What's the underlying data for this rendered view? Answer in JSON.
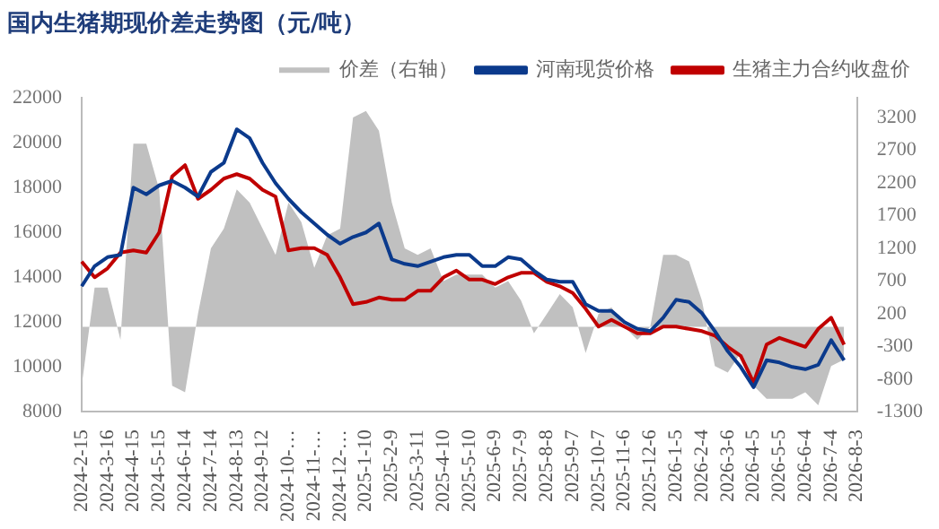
{
  "chart_data": {
    "type": "line",
    "title": "国内生猪期现价差走势图（元/吨）",
    "categories": [
      "2024-2-15",
      null,
      "2024-3-16",
      null,
      "2024-4-15",
      null,
      "2024-5-15",
      null,
      "2024-6-14",
      null,
      "2024-7-14",
      null,
      "2024-8-13",
      null,
      "2024-9-12",
      null,
      "2024-10-…",
      null,
      "2024-11-…",
      null,
      "2024-12-…",
      null,
      "2025-1-10",
      null,
      "2025-2-9",
      null,
      "2025-3-11",
      null,
      "2025-4-10",
      null,
      "2025-5-10",
      null,
      "2025-6-9",
      null,
      "2025-7-9",
      null,
      "2025-8-8",
      null,
      "2025-9-7",
      null,
      "2025-10-7",
      null,
      "2025-11-6",
      null,
      "2025-12-6",
      null,
      "2026-1-5",
      null,
      "2026-2-4",
      null,
      "2026-3-6",
      null,
      "2026-4-5",
      null,
      "2026-5-5",
      null,
      "2026-6-4",
      null,
      "2026-7-4",
      null,
      "2026-8-3"
    ],
    "series": [
      {
        "name": "价差（右轴）",
        "type": "area",
        "axis": "y2",
        "color": "#c0c0c0",
        "values": [
          -900,
          600,
          600,
          -200,
          2800,
          2800,
          2100,
          -900,
          -1000,
          200,
          1200,
          1500,
          2100,
          1900,
          1500,
          1100,
          1900,
          1600,
          900,
          1400,
          1500,
          3200,
          3300,
          3000,
          1900,
          1200,
          1100,
          1200,
          700,
          800,
          800,
          800,
          600,
          700,
          400,
          -100,
          200,
          500,
          300,
          -400,
          200,
          300,
          0,
          -200,
          0,
          1100,
          1100,
          1000,
          400,
          -600,
          -700,
          -400,
          -900,
          -1100,
          -1100,
          -1100,
          -1000,
          -1200,
          -600,
          -500,
          null
        ]
      },
      {
        "name": "河南现货价格",
        "type": "line",
        "color": "#0b3a8c",
        "values": [
          13600,
          14500,
          14900,
          15000,
          18000,
          17700,
          18100,
          18300,
          18000,
          17600,
          18700,
          19100,
          20600,
          20200,
          19100,
          18200,
          17500,
          16900,
          16400,
          15900,
          15500,
          15800,
          16000,
          16400,
          14800,
          14600,
          14500,
          14700,
          14900,
          15000,
          15000,
          14500,
          14500,
          14900,
          14800,
          14300,
          13900,
          13800,
          13800,
          12800,
          12500,
          12500,
          12000,
          11700,
          11600,
          12200,
          13000,
          12900,
          12400,
          11600,
          10700,
          10000,
          9100,
          10300,
          10200,
          10000,
          9900,
          10100,
          11200,
          10300,
          null
        ]
      },
      {
        "name": "生猪主力合约收盘价",
        "type": "line",
        "color": "#c00000",
        "values": [
          14700,
          14000,
          14400,
          15100,
          15200,
          15100,
          16000,
          18500,
          19000,
          17500,
          17900,
          18400,
          18600,
          18400,
          17900,
          17600,
          15200,
          15300,
          15300,
          15000,
          14000,
          12800,
          12900,
          13100,
          13000,
          13000,
          13400,
          13400,
          14000,
          14300,
          13900,
          13900,
          13700,
          14000,
          14200,
          14200,
          13800,
          13600,
          13300,
          12600,
          11800,
          12100,
          11800,
          11500,
          11500,
          11800,
          11800,
          11700,
          11600,
          11400,
          10900,
          10500,
          9300,
          11000,
          11300,
          11100,
          10900,
          11700,
          12200,
          11000,
          null
        ]
      }
    ],
    "ylim": [
      8000,
      22000
    ],
    "yticks": [
      8000,
      10000,
      12000,
      14000,
      16000,
      18000,
      20000,
      22000
    ],
    "y2lim": [
      -1300,
      3500
    ],
    "y2ticks": [
      -1300,
      -800,
      -300,
      200,
      700,
      1200,
      1700,
      2200,
      2700,
      3200
    ],
    "legend": "top",
    "grid": false,
    "marker": "none",
    "line_style": "solid"
  }
}
